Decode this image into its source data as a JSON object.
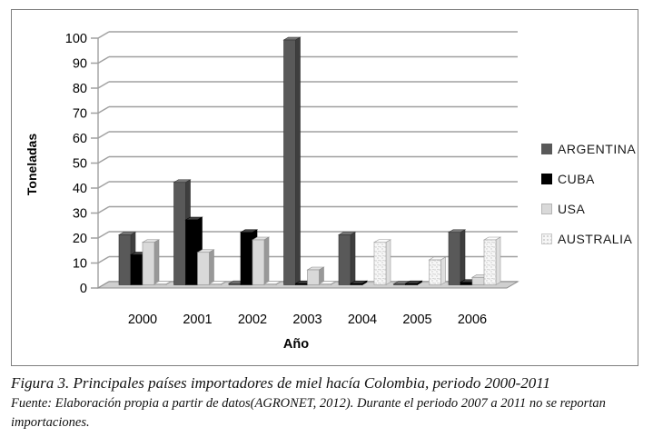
{
  "figure": {
    "caption_title": "Figura 3. Principales países importadores de miel hacía Colombia, periodo 2000-2011",
    "caption_source": "Fuente: Elaboración propia  a partir de datos(AGRONET, 2012). Durante el periodo 2007 a 2011 no se reportan importaciones."
  },
  "chart_data": {
    "type": "bar",
    "effect": "3d",
    "title": "",
    "xlabel": "Año",
    "ylabel": "Toneladas",
    "ylim": [
      0,
      100
    ],
    "ytick_step": 10,
    "grid": true,
    "legend_position": "right",
    "categories": [
      "2000",
      "2001",
      "2002",
      "2003",
      "2004",
      "2005",
      "2006"
    ],
    "series": [
      {
        "name": "ARGENTINA",
        "color": "#595959",
        "texture": "solid",
        "values": [
          20,
          41,
          0.5,
          98,
          20,
          0.3,
          21
        ]
      },
      {
        "name": "CUBA",
        "color": "#000000",
        "texture": "solid",
        "values": [
          12,
          26,
          21,
          0.5,
          0.5,
          0.5,
          1
        ]
      },
      {
        "name": "USA",
        "color": "#d9d9d9",
        "texture": "solid",
        "values": [
          17,
          13,
          18,
          6,
          0,
          0,
          3
        ]
      },
      {
        "name": "AUSTRALIA",
        "color": "#f5f5f5",
        "texture": "speckled",
        "values": [
          0.3,
          0.3,
          0.3,
          0.3,
          17,
          10,
          18
        ]
      }
    ],
    "colors": {
      "gridline": "#a0a0a0",
      "axis": "#8c8c8c",
      "floor_fill": "#cfcfcf",
      "floor_edge": "#8c8c8c",
      "tick_text": "#000000"
    }
  }
}
